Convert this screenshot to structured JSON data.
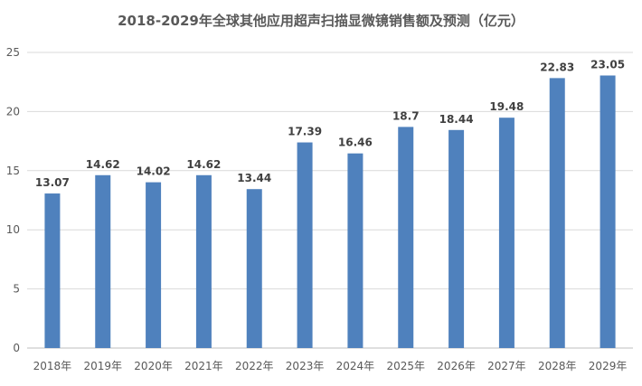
{
  "chart_data": {
    "type": "bar",
    "title": "2018-2029年全球其他应用超声扫描显微镜销售额及预测（亿元）",
    "categories": [
      "2018年",
      "2019年",
      "2020年",
      "2021年",
      "2022年",
      "2023年",
      "2024年",
      "2025年",
      "2026年",
      "2027年",
      "2028年",
      "2029年"
    ],
    "values": [
      13.07,
      14.62,
      14.02,
      14.62,
      13.44,
      17.39,
      16.46,
      18.7,
      18.44,
      19.48,
      22.83,
      23.05
    ],
    "data_labels": [
      "13.07",
      "14.62",
      "14.02",
      "14.62",
      "13.44",
      "17.39",
      "16.46",
      "18.7",
      "18.44",
      "19.48",
      "22.83",
      "23.05"
    ],
    "ylim": [
      0,
      25
    ],
    "yticks": [
      0,
      5,
      10,
      15,
      20,
      25
    ],
    "ytick_labels": [
      "0",
      "5",
      "10",
      "15",
      "20",
      "25"
    ],
    "xlabel": "",
    "ylabel": "",
    "grid": true,
    "legend": "none",
    "bar_color": "#4f81bd"
  }
}
